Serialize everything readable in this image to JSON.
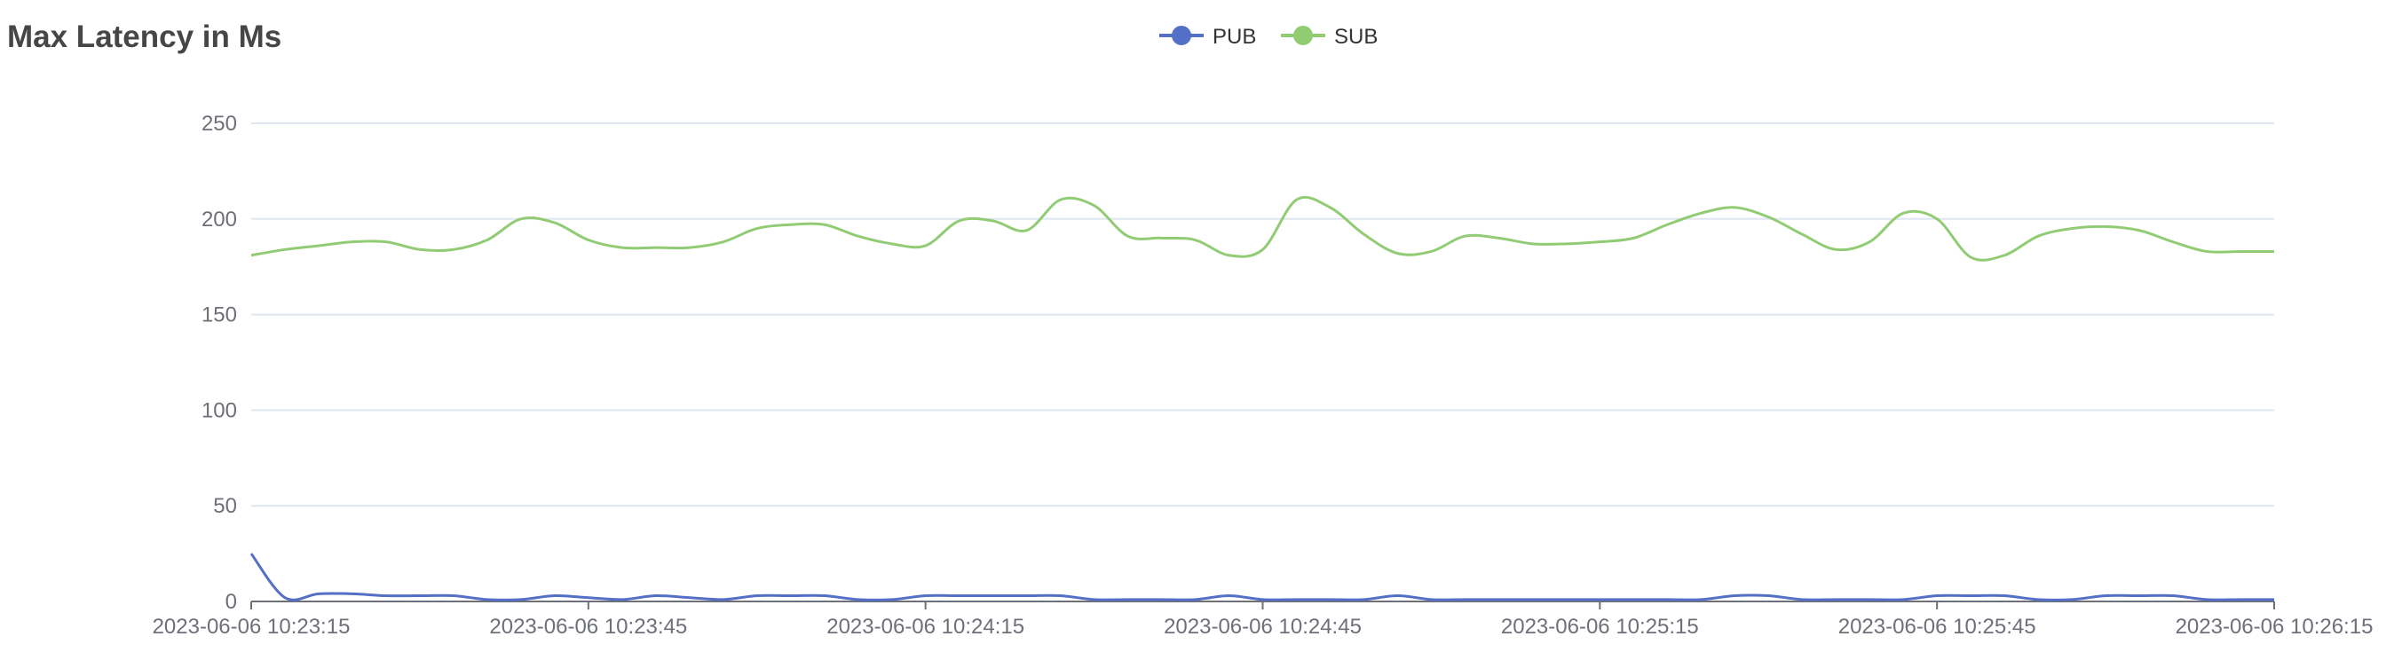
{
  "chart_data": {
    "type": "line",
    "title": "Max Latency in Ms",
    "xlabel": "",
    "ylabel": "",
    "ylim": [
      0,
      250
    ],
    "yticks": [
      "0",
      "50",
      "100",
      "150",
      "200",
      "250"
    ],
    "xticks": [
      "2023-06-06 10:23:15",
      "2023-06-06 10:23:45",
      "2023-06-06 10:24:15",
      "2023-06-06 10:24:45",
      "2023-06-06 10:25:15",
      "2023-06-06 10:25:45",
      "2023-06-06 10:26:15"
    ],
    "grid": true,
    "legend_position": "top-center",
    "smooth": true,
    "x": [
      "10:23:15",
      "10:23:18",
      "10:23:21",
      "10:23:24",
      "10:23:27",
      "10:23:30",
      "10:23:33",
      "10:23:36",
      "10:23:39",
      "10:23:42",
      "10:23:45",
      "10:23:48",
      "10:23:51",
      "10:23:54",
      "10:23:57",
      "10:24:00",
      "10:24:03",
      "10:24:06",
      "10:24:09",
      "10:24:12",
      "10:24:15",
      "10:24:18",
      "10:24:21",
      "10:24:24",
      "10:24:27",
      "10:24:30",
      "10:24:33",
      "10:24:36",
      "10:24:39",
      "10:24:42",
      "10:24:45",
      "10:24:48",
      "10:24:51",
      "10:24:54",
      "10:24:57",
      "10:25:00",
      "10:25:03",
      "10:25:06",
      "10:25:09",
      "10:25:12",
      "10:25:15",
      "10:25:18",
      "10:25:21",
      "10:25:24",
      "10:25:27",
      "10:25:30",
      "10:25:33",
      "10:25:36",
      "10:25:39",
      "10:25:42",
      "10:25:45",
      "10:25:48",
      "10:25:51",
      "10:25:54",
      "10:25:57",
      "10:26:00",
      "10:26:03",
      "10:26:06",
      "10:26:09",
      "10:26:12",
      "10:26:15"
    ],
    "series": [
      {
        "name": "PUB",
        "color": "#5470c6",
        "values": [
          25,
          2,
          4,
          4,
          3,
          3,
          3,
          1,
          1,
          3,
          2,
          1,
          3,
          2,
          1,
          3,
          3,
          3,
          1,
          1,
          3,
          3,
          3,
          3,
          3,
          1,
          1,
          1,
          1,
          3,
          1,
          1,
          1,
          1,
          3,
          1,
          1,
          1,
          1,
          1,
          1,
          1,
          1,
          1,
          3,
          3,
          1,
          1,
          1,
          1,
          3,
          3,
          3,
          1,
          1,
          3,
          3,
          3,
          1,
          1,
          1
        ]
      },
      {
        "name": "SUB",
        "color": "#91cc75",
        "values": [
          181,
          184,
          186,
          188,
          188,
          184,
          184,
          189,
          200,
          198,
          189,
          185,
          185,
          185,
          188,
          195,
          197,
          197,
          191,
          187,
          186,
          199,
          199,
          194,
          210,
          207,
          191,
          190,
          189,
          181,
          184,
          210,
          206,
          192,
          182,
          183,
          191,
          190,
          187,
          187,
          188,
          190,
          197,
          203,
          206,
          201,
          192,
          184,
          188,
          203,
          200,
          180,
          181,
          191,
          195,
          196,
          194,
          188,
          183,
          183,
          183
        ]
      }
    ]
  }
}
